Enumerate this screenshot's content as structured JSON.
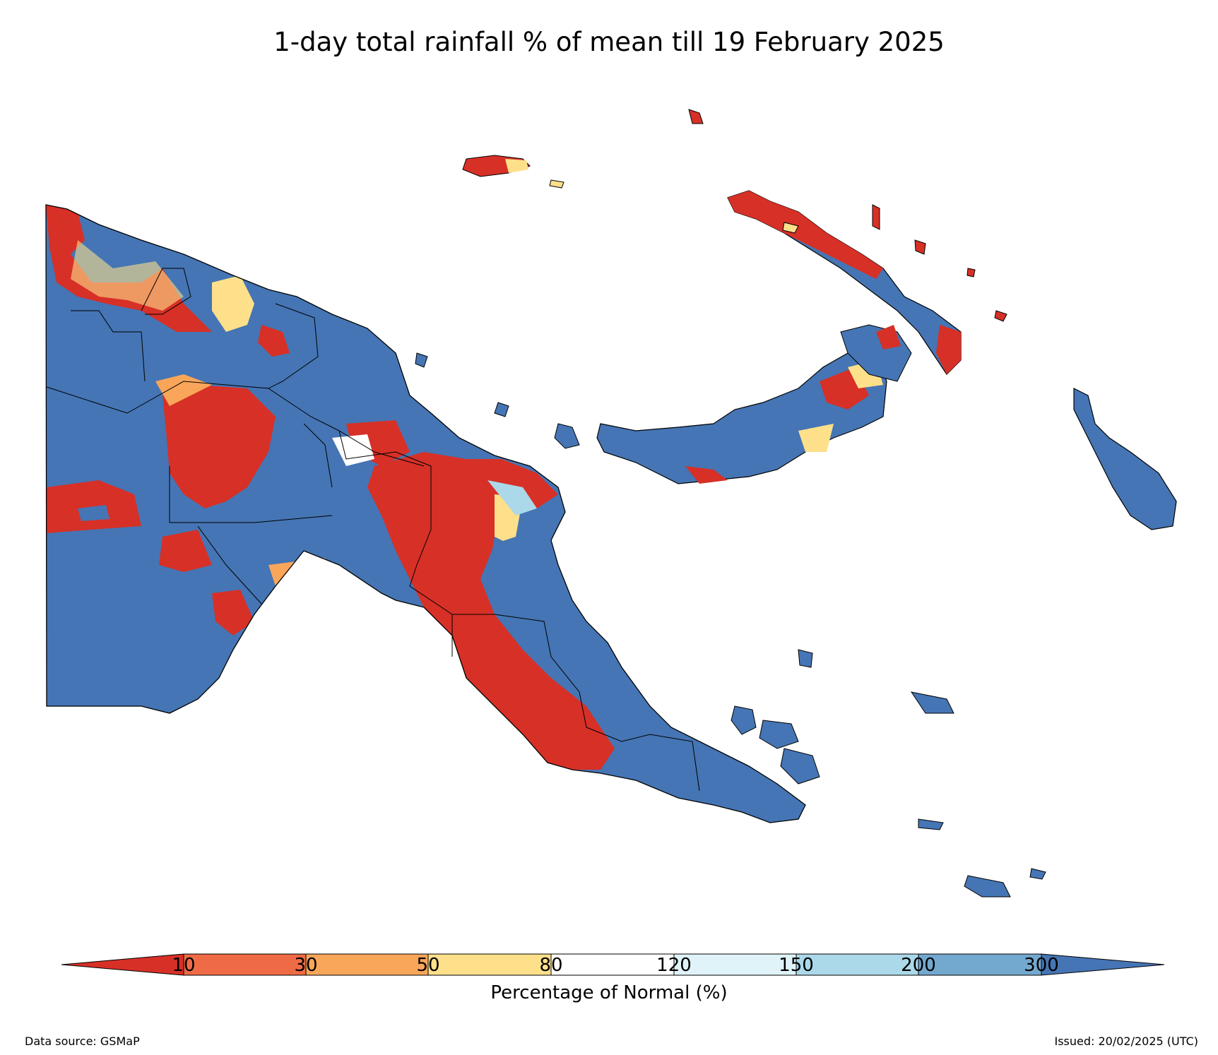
{
  "title": "1-day total rainfall % of mean till 19 February 2025",
  "colorbar": {
    "label": "Percentage of Normal (%)",
    "ticks": [
      "10",
      "30",
      "50",
      "80",
      "120",
      "150",
      "200",
      "300"
    ],
    "colors": [
      "#d73027",
      "#ef6b45",
      "#f9a65a",
      "#fee08b",
      "#ffffff",
      "#e0f3f8",
      "#abd9e9",
      "#74a9cf",
      "#4575b4"
    ]
  },
  "footer": {
    "source": "Data source: GSMaP",
    "issued": "Issued: 20/02/2025 (UTC)"
  },
  "legend_colors": {
    "below_10": "#d73027",
    "above_300": "#4575b4"
  }
}
